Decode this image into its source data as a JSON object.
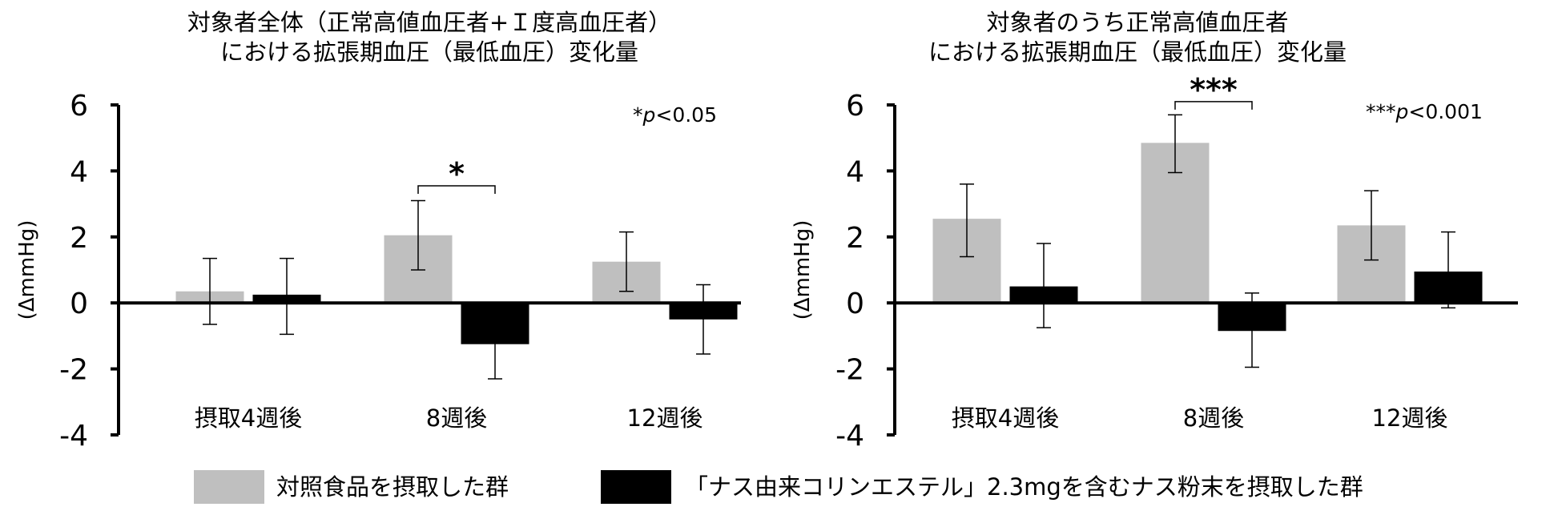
{
  "chart_data": [
    {
      "type": "bar",
      "title_lines": [
        "対象者全体（正常高値血圧者+Ｉ度高血圧者）",
        "における拡張期血圧（最低血圧）変化量"
      ],
      "ylabel": "(ΔmmHg)",
      "ylim": [
        -4,
        6
      ],
      "yticks": [
        "6",
        "4",
        "2",
        "0",
        "-2",
        "-4"
      ],
      "yticks_values": [
        6,
        4,
        2,
        0,
        -2,
        -4
      ],
      "categories": [
        "摂取4週後",
        "8週後",
        "12週後"
      ],
      "series": [
        {
          "name": "対照食品を摂取した群",
          "color": "#bfbfbf",
          "values": [
            0.35,
            2.05,
            1.25
          ],
          "err_high": [
            1.35,
            3.1,
            2.15
          ],
          "err_low": [
            -0.65,
            1.0,
            0.35
          ]
        },
        {
          "name": "「ナス由来コリンエステル」2.3mgを含むナス粉末を摂取した群",
          "color": "#000000",
          "values": [
            0.25,
            -1.25,
            -0.5
          ],
          "err_high": [
            1.35,
            -0.2,
            0.55
          ],
          "err_low": [
            -0.95,
            -2.3,
            -1.55
          ]
        }
      ],
      "significance": [
        {
          "category_index": 1,
          "label": "*",
          "bracket_y": 3.55
        }
      ],
      "note": {
        "prefix": "*",
        "italic": "p",
        "suffix": "<0.05"
      }
    },
    {
      "type": "bar",
      "title_lines": [
        "対象者のうち正常高値血圧者",
        "における拡張期血圧（最低血圧）変化量"
      ],
      "ylabel": "(ΔmmHg)",
      "ylim": [
        -4,
        6
      ],
      "yticks": [
        "6",
        "4",
        "2",
        "0",
        "-2",
        "-4"
      ],
      "yticks_values": [
        6,
        4,
        2,
        0,
        -2,
        -4
      ],
      "categories": [
        "摂取4週後",
        "8週後",
        "12週後"
      ],
      "series": [
        {
          "name": "対照食品を摂取した群",
          "color": "#bfbfbf",
          "values": [
            2.55,
            4.85,
            2.35
          ],
          "err_high": [
            3.6,
            5.7,
            3.4
          ],
          "err_low": [
            1.4,
            3.95,
            1.3
          ]
        },
        {
          "name": "「ナス由来コリンエステル」2.3mgを含むナス粉末を摂取した群",
          "color": "#000000",
          "values": [
            0.5,
            -0.85,
            0.95
          ],
          "err_high": [
            1.8,
            0.3,
            2.15
          ],
          "err_low": [
            -0.75,
            -1.95,
            -0.15
          ]
        }
      ],
      "significance": [
        {
          "category_index": 1,
          "label": "***",
          "bracket_y": 6.1
        }
      ],
      "note": {
        "prefix": "***",
        "italic": "p",
        "suffix": "<0.001"
      }
    }
  ],
  "legend": [
    {
      "label": "対照食品を摂取した群",
      "color": "#bfbfbf"
    },
    {
      "label": "「ナス由来コリンエステル」2.3mgを含むナス粉末を摂取した群",
      "color": "#000000"
    }
  ]
}
